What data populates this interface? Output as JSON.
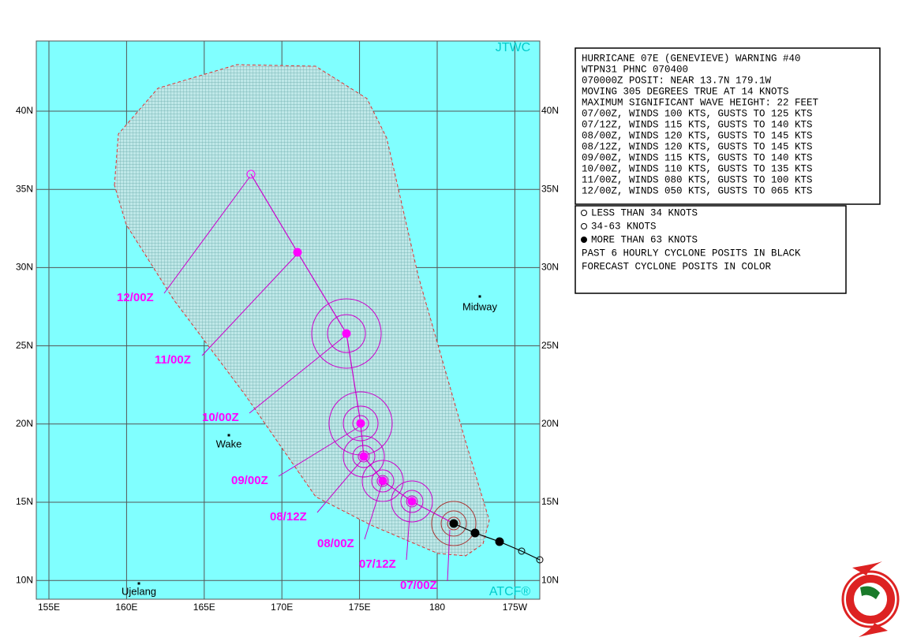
{
  "header": {
    "agency": "JTWC",
    "system": "ATCF®"
  },
  "lat_labels": [
    "40N",
    "35N",
    "30N",
    "25N",
    "20N",
    "15N",
    "10N"
  ],
  "lon_labels": [
    "155E",
    "160E",
    "165E",
    "170E",
    "175E",
    "180",
    "175W"
  ],
  "places": [
    "Midway",
    "Wake",
    "Ujelang"
  ],
  "forecast_labels": [
    "07/00Z",
    "07/12Z",
    "08/00Z",
    "08/12Z",
    "09/00Z",
    "10/00Z",
    "11/00Z",
    "12/00Z"
  ],
  "warning": {
    "lines": [
      "HURRICANE 07E (GENEVIEVE) WARNING #40",
      "WTPN31 PHNC 070400",
      "070000Z POSIT: NEAR 13.7N 179.1W",
      "MOVING 305 DEGREES TRUE AT 14 KNOTS",
      "MAXIMUM SIGNIFICANT WAVE HEIGHT: 22 FEET",
      "07/00Z, WINDS 100 KTS, GUSTS TO 125 KTS",
      "07/12Z, WINDS 115 KTS, GUSTS TO 140 KTS",
      "08/00Z, WINDS 120 KTS, GUSTS TO 145 KTS",
      "08/12Z, WINDS 120 KTS, GUSTS TO 145 KTS",
      "09/00Z, WINDS 115 KTS, GUSTS TO 140 KTS",
      "10/00Z, WINDS 110 KTS, GUSTS TO 135 KTS",
      "11/00Z, WINDS 080 KTS, GUSTS TO 100 KTS",
      "12/00Z, WINDS 050 KTS, GUSTS TO 065 KTS"
    ]
  },
  "legend": {
    "lines": [
      "LESS THAN 34 KNOTS",
      "34-63 KNOTS",
      "MORE THAN 63 KNOTS",
      "PAST 6 HOURLY CYCLONE POSITS IN BLACK",
      "FORECAST CYCLONE POSITS IN COLOR"
    ]
  }
}
